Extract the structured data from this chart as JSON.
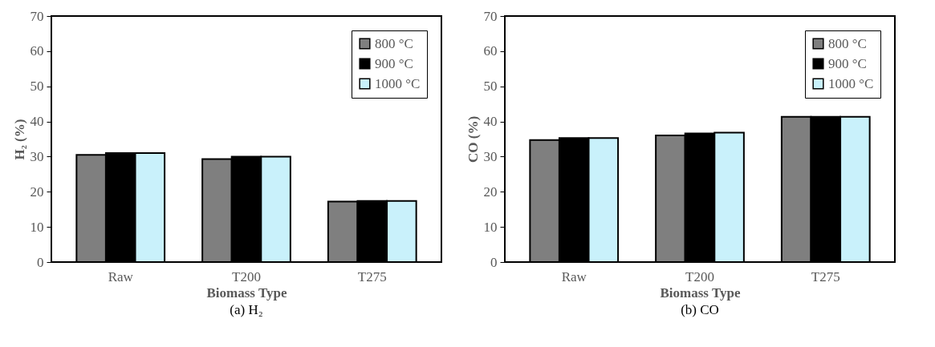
{
  "chart_data": [
    {
      "type": "bar",
      "xlabel": "Biomass Type",
      "ylabel": "H₂ (%)",
      "annotations": [
        "(a) H₂"
      ],
      "categories": [
        "Raw",
        "T200",
        "T275"
      ],
      "series": [
        {
          "name": "800 °C",
          "color": "#7f7f7f",
          "values": [
            30.5,
            29.3,
            17.2
          ]
        },
        {
          "name": "900 °C",
          "color": "#000000",
          "values": [
            31.0,
            30.0,
            17.4
          ]
        },
        {
          "name": "1000 °C",
          "color": "#c9f1fb",
          "values": [
            31.0,
            30.0,
            17.4
          ]
        }
      ],
      "ylim": [
        0,
        70
      ],
      "yticks": [
        0,
        10,
        20,
        30,
        40,
        50,
        60,
        70
      ],
      "legend": "top right",
      "grid": false
    },
    {
      "type": "bar",
      "xlabel": "Biomass Type",
      "ylabel": "CO (%)",
      "annotations": [
        "(b) CO"
      ],
      "categories": [
        "Raw",
        "T200",
        "T275"
      ],
      "series": [
        {
          "name": "800 °C",
          "color": "#7f7f7f",
          "values": [
            34.7,
            36.0,
            41.3
          ]
        },
        {
          "name": "900 °C",
          "color": "#000000",
          "values": [
            35.3,
            36.6,
            41.3
          ]
        },
        {
          "name": "1000 °C",
          "color": "#c9f1fb",
          "values": [
            35.3,
            36.8,
            41.3
          ]
        }
      ],
      "ylim": [
        0,
        70
      ],
      "yticks": [
        0,
        10,
        20,
        30,
        40,
        50,
        60,
        70
      ],
      "legend": "top right",
      "grid": false
    }
  ]
}
